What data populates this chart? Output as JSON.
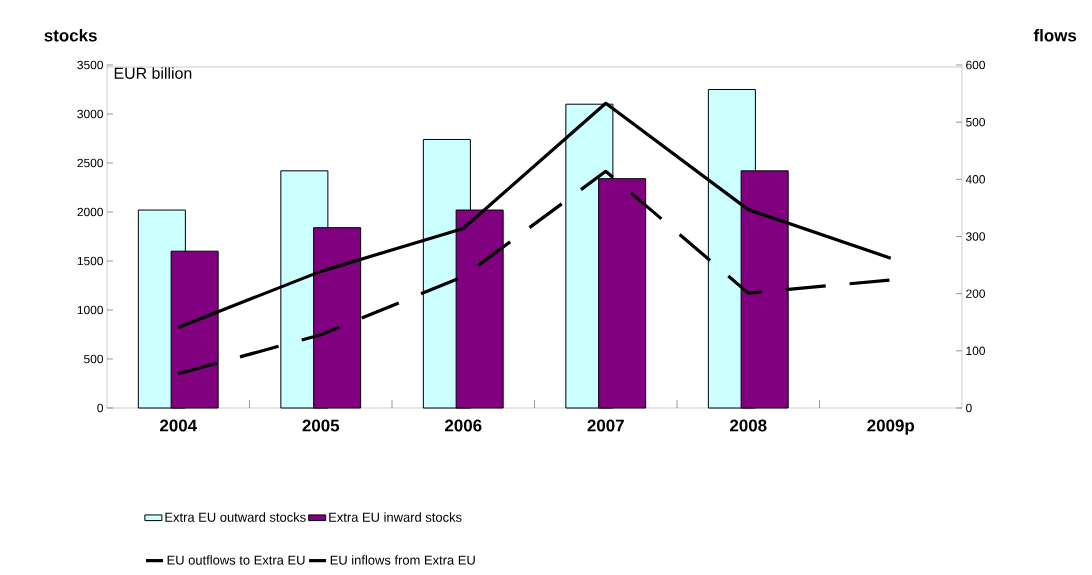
{
  "chart_data": {
    "type": "bar",
    "ylabel": "stocks",
    "y2label": "flows",
    "categories": [
      "2004",
      "2005",
      "2006",
      "2007",
      "2008",
      "2009p"
    ],
    "series": [
      {
        "name": "Extra EU outward stocks",
        "color": "#ccffff",
        "values": [
          2020,
          2420,
          2740,
          3100,
          3250,
          null
        ]
      },
      {
        "name": "Extra EU inward stocks",
        "color": "#800080",
        "values": [
          1600,
          1840,
          2020,
          2340,
          2420,
          null
        ]
      },
      {
        "name": "EU outflows to Extra EU",
        "type": "line",
        "axis": "y2",
        "line_style": "solid",
        "color": "#000000",
        "values": [
          141,
          239,
          314,
          533,
          347,
          262
        ]
      },
      {
        "name": "EU inflows from Extra EU",
        "type": "line",
        "axis": "y2",
        "line_style": "dashed",
        "color": "#000000",
        "values": [
          60,
          128,
          230,
          414,
          201,
          224
        ]
      }
    ],
    "ylim": [
      0,
      3500
    ],
    "yticks": [
      0,
      500,
      1000,
      1500,
      2000,
      2500,
      3000,
      3500
    ],
    "y2lim": [
      0,
      600
    ],
    "y2ticks": [
      0,
      100,
      200,
      300,
      400,
      500,
      600
    ],
    "annotations": [
      "EUR billion"
    ],
    "legend": "bottom",
    "grid": false
  }
}
